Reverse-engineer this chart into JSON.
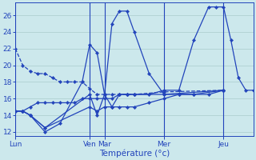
{
  "background_color": "#cce8ec",
  "grid_color": "#aacccc",
  "line_color": "#2244bb",
  "xlabel": "Température (°c)",
  "ylim": [
    11.5,
    27.5
  ],
  "yticks": [
    12,
    14,
    16,
    18,
    20,
    22,
    24,
    26
  ],
  "day_labels": [
    "Lun",
    "Ven",
    "Mar",
    "Mer",
    "Jeu"
  ],
  "day_x": [
    0,
    60,
    72,
    120,
    168
  ],
  "xlim": [
    0,
    192
  ],
  "series": [
    {
      "x": [
        0,
        6,
        12,
        18,
        24,
        30,
        36,
        42,
        48,
        54,
        60,
        66,
        72,
        78,
        84,
        90,
        96,
        120,
        168
      ],
      "y": [
        22,
        20,
        19.3,
        19,
        19,
        18.5,
        18,
        18,
        18,
        18,
        17.2,
        16.5,
        16.5,
        16.5,
        16.5,
        16.5,
        16.5,
        16.8,
        17.0
      ],
      "dashed": true
    },
    {
      "x": [
        0,
        6,
        12,
        24,
        36,
        54,
        60,
        66,
        72,
        78,
        84,
        90,
        96,
        108,
        120,
        132,
        144,
        168
      ],
      "y": [
        14.5,
        14.5,
        14.0,
        12.0,
        13.0,
        18.0,
        22.5,
        21.5,
        16.5,
        15.0,
        15.0,
        15.0,
        15.0,
        15.5,
        16.0,
        16.5,
        16.5,
        17.0
      ],
      "dashed": false
    },
    {
      "x": [
        0,
        6,
        12,
        24,
        60,
        66,
        72,
        78,
        84,
        90,
        96,
        108,
        120,
        132,
        144,
        156,
        168
      ],
      "y": [
        14.5,
        14.5,
        14.0,
        12.5,
        16.5,
        14.0,
        16.5,
        25.0,
        26.5,
        26.5,
        24.0,
        19.0,
        16.5,
        16.5,
        16.5,
        16.5,
        17.0
      ],
      "dashed": false
    },
    {
      "x": [
        0,
        6,
        12,
        24,
        60,
        66,
        72,
        78,
        84,
        90,
        96,
        108,
        120,
        132,
        144,
        156,
        162,
        168,
        174,
        180,
        186,
        192
      ],
      "y": [
        14.5,
        14.5,
        14.0,
        12.5,
        15.0,
        14.5,
        15.0,
        15.0,
        16.5,
        16.5,
        16.5,
        16.5,
        17.0,
        17.0,
        23.0,
        27.0,
        27.0,
        27.0,
        23.0,
        18.5,
        17.0,
        17.0
      ],
      "dashed": false
    },
    {
      "x": [
        0,
        6,
        12,
        18,
        24,
        30,
        36,
        42,
        48,
        54,
        60,
        66,
        72,
        78,
        84,
        90,
        96,
        120,
        168
      ],
      "y": [
        14.5,
        14.5,
        15.0,
        15.5,
        15.5,
        15.5,
        15.5,
        15.5,
        15.5,
        16.0,
        16.0,
        16.0,
        16.0,
        16.0,
        16.5,
        16.5,
        16.5,
        16.5,
        17.0
      ],
      "dashed": false
    }
  ]
}
